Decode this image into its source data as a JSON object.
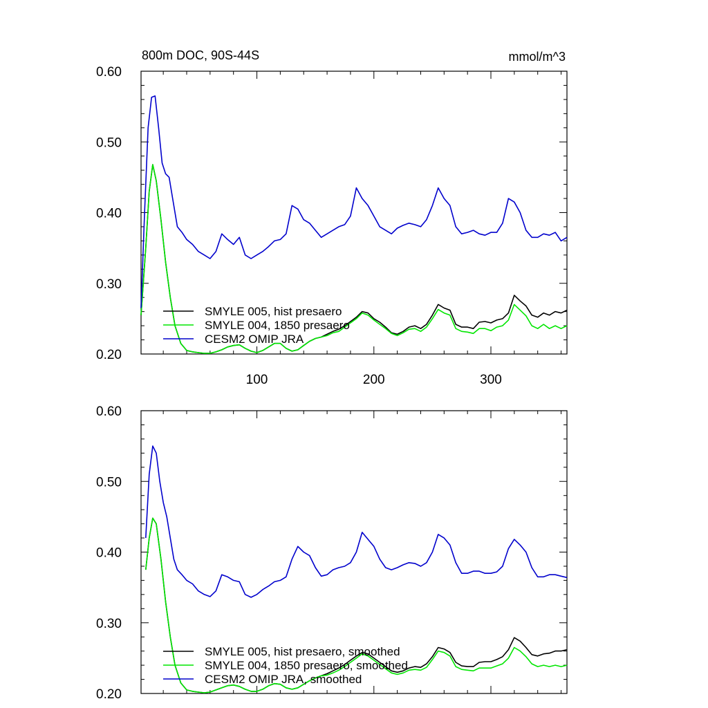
{
  "chart_data": [
    {
      "type": "line",
      "title": "800m DOC, 90S-44S",
      "units": "mmol/m^3",
      "xlim": [
        1,
        365
      ],
      "ylim": [
        0.2,
        0.6
      ],
      "xticks": [
        100,
        200,
        300
      ],
      "xtick_labels": [
        "100",
        "200",
        "300"
      ],
      "yticks": [
        0.2,
        0.3,
        0.4,
        0.5,
        0.6
      ],
      "ytick_labels": [
        "0.20",
        "0.30",
        "0.40",
        "0.50",
        "0.60"
      ],
      "legend_position": "bottom-left",
      "series": [
        {
          "name": "SMYLE 005, hist presaero",
          "color": "#000000",
          "x": [
            1,
            5,
            8,
            11,
            14,
            18,
            22,
            26,
            30,
            35,
            40,
            45,
            50,
            55,
            60,
            65,
            70,
            75,
            80,
            85,
            90,
            95,
            100,
            105,
            110,
            115,
            120,
            125,
            130,
            135,
            140,
            145,
            150,
            155,
            160,
            165,
            170,
            175,
            180,
            185,
            190,
            195,
            200,
            205,
            210,
            215,
            220,
            225,
            230,
            235,
            240,
            245,
            250,
            255,
            260,
            265,
            270,
            275,
            280,
            285,
            290,
            295,
            300,
            305,
            310,
            315,
            320,
            325,
            330,
            335,
            340,
            345,
            350,
            355,
            360,
            365
          ],
          "values": [
            0.255,
            0.35,
            0.43,
            0.468,
            0.445,
            0.39,
            0.33,
            0.28,
            0.24,
            0.215,
            0.205,
            0.203,
            0.202,
            0.201,
            0.201,
            0.203,
            0.206,
            0.21,
            0.212,
            0.213,
            0.208,
            0.204,
            0.202,
            0.205,
            0.21,
            0.215,
            0.215,
            0.208,
            0.204,
            0.206,
            0.212,
            0.218,
            0.222,
            0.224,
            0.228,
            0.232,
            0.235,
            0.24,
            0.246,
            0.252,
            0.26,
            0.258,
            0.25,
            0.245,
            0.238,
            0.23,
            0.228,
            0.232,
            0.238,
            0.24,
            0.236,
            0.242,
            0.255,
            0.27,
            0.265,
            0.262,
            0.242,
            0.238,
            0.238,
            0.236,
            0.245,
            0.246,
            0.244,
            0.248,
            0.25,
            0.258,
            0.283,
            0.275,
            0.268,
            0.255,
            0.252,
            0.258,
            0.255,
            0.26,
            0.258,
            0.262
          ]
        },
        {
          "name": "SMYLE 004, 1850 presaero",
          "color": "#00e600",
          "x": [
            1,
            5,
            8,
            11,
            14,
            18,
            22,
            26,
            30,
            35,
            40,
            45,
            50,
            55,
            60,
            65,
            70,
            75,
            80,
            85,
            90,
            95,
            100,
            105,
            110,
            115,
            120,
            125,
            130,
            135,
            140,
            145,
            150,
            155,
            160,
            165,
            170,
            175,
            180,
            185,
            190,
            195,
            200,
            205,
            210,
            215,
            220,
            225,
            230,
            235,
            240,
            245,
            250,
            255,
            260,
            265,
            270,
            275,
            280,
            285,
            290,
            295,
            300,
            305,
            310,
            315,
            320,
            325,
            330,
            335,
            340,
            345,
            350,
            355,
            360,
            365
          ],
          "values": [
            0.255,
            0.35,
            0.43,
            0.468,
            0.445,
            0.39,
            0.33,
            0.28,
            0.24,
            0.215,
            0.205,
            0.203,
            0.202,
            0.201,
            0.201,
            0.203,
            0.206,
            0.21,
            0.212,
            0.213,
            0.208,
            0.204,
            0.202,
            0.205,
            0.21,
            0.215,
            0.215,
            0.208,
            0.204,
            0.206,
            0.212,
            0.218,
            0.222,
            0.224,
            0.226,
            0.23,
            0.232,
            0.238,
            0.244,
            0.25,
            0.258,
            0.255,
            0.248,
            0.242,
            0.236,
            0.229,
            0.226,
            0.23,
            0.235,
            0.236,
            0.232,
            0.238,
            0.25,
            0.263,
            0.258,
            0.255,
            0.236,
            0.232,
            0.231,
            0.229,
            0.236,
            0.236,
            0.233,
            0.238,
            0.24,
            0.248,
            0.27,
            0.262,
            0.254,
            0.24,
            0.236,
            0.242,
            0.236,
            0.24,
            0.236,
            0.24
          ]
        },
        {
          "name": "CESM2 OMIP JRA",
          "color": "#0000cc",
          "x": [
            1,
            4,
            7,
            10,
            13,
            16,
            19,
            22,
            25,
            28,
            32,
            36,
            40,
            45,
            50,
            55,
            60,
            65,
            70,
            75,
            80,
            85,
            90,
            95,
            100,
            105,
            110,
            115,
            120,
            125,
            130,
            135,
            140,
            145,
            150,
            155,
            160,
            165,
            170,
            175,
            180,
            185,
            190,
            195,
            200,
            205,
            210,
            215,
            220,
            225,
            230,
            235,
            240,
            245,
            250,
            255,
            260,
            265,
            270,
            275,
            280,
            285,
            290,
            295,
            300,
            305,
            310,
            315,
            320,
            325,
            330,
            335,
            340,
            345,
            350,
            355,
            360,
            365
          ],
          "values": [
            0.265,
            0.4,
            0.52,
            0.563,
            0.565,
            0.52,
            0.47,
            0.455,
            0.45,
            0.42,
            0.38,
            0.372,
            0.362,
            0.355,
            0.345,
            0.34,
            0.335,
            0.345,
            0.37,
            0.362,
            0.355,
            0.365,
            0.34,
            0.335,
            0.34,
            0.345,
            0.352,
            0.36,
            0.362,
            0.37,
            0.41,
            0.405,
            0.39,
            0.385,
            0.375,
            0.365,
            0.37,
            0.375,
            0.38,
            0.383,
            0.395,
            0.435,
            0.42,
            0.41,
            0.395,
            0.38,
            0.375,
            0.37,
            0.378,
            0.382,
            0.385,
            0.383,
            0.38,
            0.39,
            0.41,
            0.435,
            0.42,
            0.41,
            0.38,
            0.37,
            0.372,
            0.375,
            0.37,
            0.368,
            0.372,
            0.372,
            0.385,
            0.42,
            0.415,
            0.4,
            0.375,
            0.365,
            0.365,
            0.37,
            0.368,
            0.372,
            0.36,
            0.365
          ]
        }
      ]
    },
    {
      "type": "line",
      "xlim": [
        1,
        365
      ],
      "ylim": [
        0.2,
        0.6
      ],
      "xticks": [
        100,
        200,
        300
      ],
      "yticks": [
        0.2,
        0.3,
        0.4,
        0.5,
        0.6
      ],
      "ytick_labels": [
        "0.20",
        "0.30",
        "0.40",
        "0.50",
        "0.60"
      ],
      "legend_position": "bottom-left",
      "series": [
        {
          "name": "SMYLE 005, hist presaero, smoothed",
          "color": "#000000",
          "x": [
            5,
            8,
            11,
            14,
            18,
            22,
            26,
            30,
            35,
            40,
            45,
            50,
            55,
            60,
            65,
            70,
            75,
            80,
            85,
            90,
            95,
            100,
            105,
            110,
            115,
            120,
            125,
            130,
            135,
            140,
            145,
            150,
            155,
            160,
            165,
            170,
            175,
            180,
            185,
            190,
            195,
            200,
            205,
            210,
            215,
            220,
            225,
            230,
            235,
            240,
            245,
            250,
            255,
            260,
            265,
            270,
            275,
            280,
            285,
            290,
            295,
            300,
            305,
            310,
            315,
            320,
            325,
            330,
            335,
            340,
            345,
            350,
            355,
            360,
            365
          ],
          "values": [
            0.375,
            0.42,
            0.448,
            0.44,
            0.39,
            0.33,
            0.28,
            0.24,
            0.215,
            0.205,
            0.203,
            0.202,
            0.201,
            0.202,
            0.205,
            0.208,
            0.211,
            0.212,
            0.21,
            0.206,
            0.203,
            0.203,
            0.206,
            0.211,
            0.214,
            0.213,
            0.208,
            0.206,
            0.208,
            0.213,
            0.218,
            0.222,
            0.225,
            0.228,
            0.232,
            0.236,
            0.241,
            0.247,
            0.253,
            0.258,
            0.256,
            0.25,
            0.244,
            0.238,
            0.232,
            0.23,
            0.232,
            0.236,
            0.238,
            0.237,
            0.242,
            0.252,
            0.265,
            0.263,
            0.258,
            0.244,
            0.239,
            0.238,
            0.238,
            0.244,
            0.245,
            0.245,
            0.248,
            0.252,
            0.262,
            0.279,
            0.274,
            0.265,
            0.255,
            0.253,
            0.256,
            0.257,
            0.26,
            0.26,
            0.262
          ]
        },
        {
          "name": "SMYLE 004, 1850 presaero, smoothed",
          "color": "#00e600",
          "x": [
            5,
            8,
            11,
            14,
            18,
            22,
            26,
            30,
            35,
            40,
            45,
            50,
            55,
            60,
            65,
            70,
            75,
            80,
            85,
            90,
            95,
            100,
            105,
            110,
            115,
            120,
            125,
            130,
            135,
            140,
            145,
            150,
            155,
            160,
            165,
            170,
            175,
            180,
            185,
            190,
            195,
            200,
            205,
            210,
            215,
            220,
            225,
            230,
            235,
            240,
            245,
            250,
            255,
            260,
            265,
            270,
            275,
            280,
            285,
            290,
            295,
            300,
            305,
            310,
            315,
            320,
            325,
            330,
            335,
            340,
            345,
            350,
            355,
            360,
            365
          ],
          "values": [
            0.375,
            0.42,
            0.448,
            0.44,
            0.39,
            0.33,
            0.28,
            0.24,
            0.215,
            0.205,
            0.203,
            0.202,
            0.201,
            0.202,
            0.205,
            0.208,
            0.211,
            0.212,
            0.21,
            0.206,
            0.203,
            0.203,
            0.206,
            0.211,
            0.214,
            0.213,
            0.208,
            0.206,
            0.208,
            0.213,
            0.218,
            0.222,
            0.225,
            0.226,
            0.229,
            0.233,
            0.238,
            0.244,
            0.25,
            0.256,
            0.253,
            0.247,
            0.241,
            0.235,
            0.229,
            0.227,
            0.229,
            0.233,
            0.234,
            0.233,
            0.237,
            0.248,
            0.26,
            0.258,
            0.253,
            0.238,
            0.234,
            0.233,
            0.232,
            0.236,
            0.236,
            0.236,
            0.239,
            0.242,
            0.25,
            0.265,
            0.26,
            0.252,
            0.242,
            0.238,
            0.24,
            0.238,
            0.24,
            0.238,
            0.24
          ]
        },
        {
          "name": "CESM2 OMIP JRA, smoothed",
          "color": "#0000cc",
          "x": [
            5,
            8,
            11,
            14,
            17,
            20,
            23,
            26,
            29,
            32,
            36,
            40,
            45,
            50,
            55,
            60,
            65,
            70,
            75,
            80,
            85,
            90,
            95,
            100,
            105,
            110,
            115,
            120,
            125,
            130,
            135,
            140,
            145,
            150,
            155,
            160,
            165,
            170,
            175,
            180,
            185,
            190,
            195,
            200,
            205,
            210,
            215,
            220,
            225,
            230,
            235,
            240,
            245,
            250,
            255,
            260,
            265,
            270,
            275,
            280,
            285,
            290,
            295,
            300,
            305,
            310,
            315,
            320,
            325,
            330,
            335,
            340,
            345,
            350,
            355,
            360,
            365
          ],
          "values": [
            0.42,
            0.51,
            0.55,
            0.54,
            0.5,
            0.47,
            0.45,
            0.42,
            0.39,
            0.375,
            0.368,
            0.36,
            0.355,
            0.345,
            0.34,
            0.337,
            0.345,
            0.368,
            0.365,
            0.36,
            0.358,
            0.34,
            0.336,
            0.34,
            0.347,
            0.352,
            0.358,
            0.36,
            0.365,
            0.39,
            0.408,
            0.4,
            0.395,
            0.378,
            0.366,
            0.368,
            0.375,
            0.378,
            0.38,
            0.385,
            0.4,
            0.428,
            0.418,
            0.408,
            0.39,
            0.378,
            0.375,
            0.378,
            0.382,
            0.385,
            0.384,
            0.38,
            0.385,
            0.4,
            0.425,
            0.42,
            0.41,
            0.385,
            0.37,
            0.37,
            0.373,
            0.373,
            0.37,
            0.37,
            0.372,
            0.38,
            0.405,
            0.418,
            0.41,
            0.4,
            0.378,
            0.365,
            0.365,
            0.368,
            0.368,
            0.366,
            0.364
          ]
        }
      ]
    }
  ]
}
